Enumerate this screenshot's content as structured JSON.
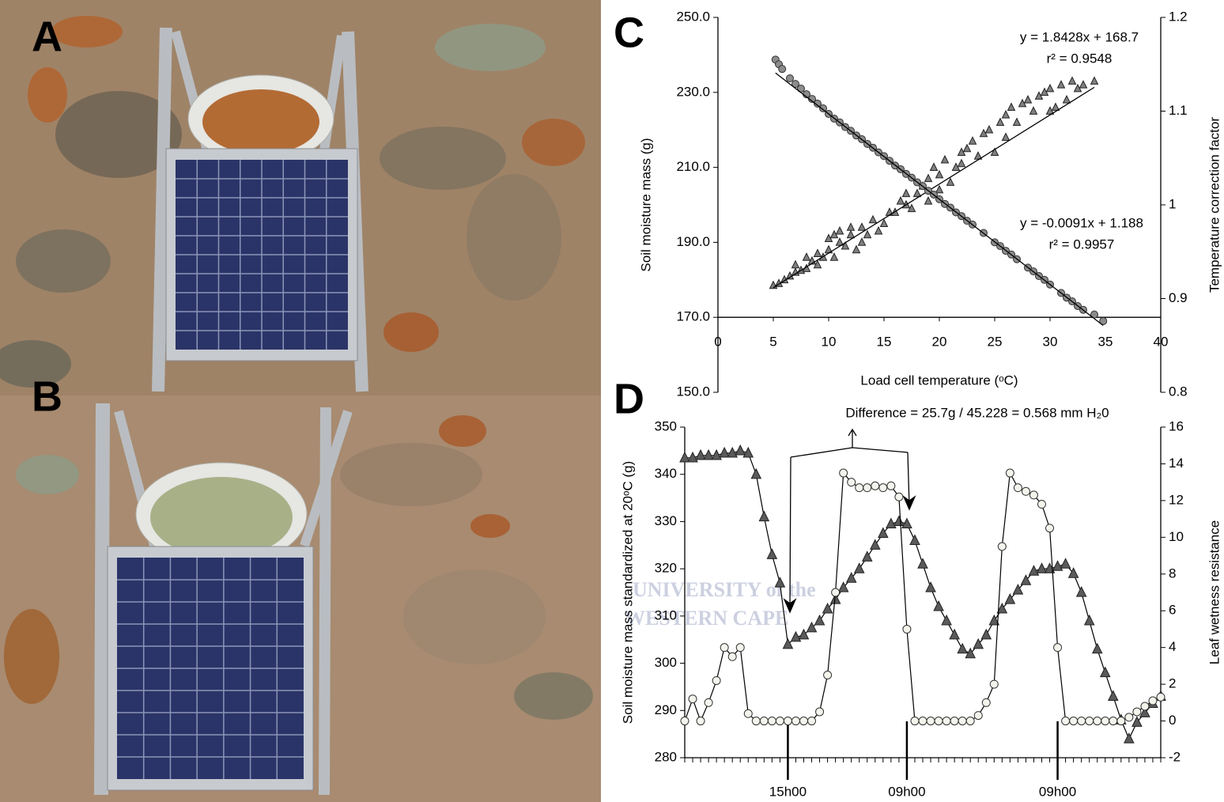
{
  "panel_labels": [
    "A",
    "B",
    "C",
    "D"
  ],
  "watermark": [
    "UNIVERSITY of the",
    "WESTERN CAPE"
  ],
  "chart_data": [
    {
      "type": "scatter",
      "x_label": "Load cell temperature (ᵒC)",
      "y_label": "Soil moisture mass (g)",
      "y2_label": "Temperature correction factor",
      "xlim": [
        0,
        40
      ],
      "xticks": [
        0,
        5,
        10,
        15,
        20,
        25,
        30,
        35,
        40
      ],
      "ylim": [
        150,
        250
      ],
      "yticks": [
        {
          "value": 150,
          "label": "150.0"
        },
        {
          "value": 170,
          "label": "170.0"
        },
        {
          "value": 190,
          "label": "190.0"
        },
        {
          "value": 210,
          "label": "210.0"
        },
        {
          "value": 230,
          "label": "230.0"
        },
        {
          "value": 250,
          "label": "250.0"
        }
      ],
      "y2lim": [
        0.8,
        1.2
      ],
      "y2ticks": [
        0.8,
        0.9,
        1,
        1.1,
        1.2
      ],
      "x_axis_crosses_y": 170,
      "series": [
        {
          "marker": "triangle",
          "color": "#808080",
          "axis": "y",
          "x": [
            5,
            5.5,
            6,
            6.5,
            7,
            7,
            7.5,
            8,
            8,
            8.5,
            9,
            9,
            9.5,
            10,
            10,
            10.5,
            10.5,
            11,
            11,
            11.5,
            12,
            12,
            12.5,
            13,
            13,
            13.5,
            14,
            14.5,
            15,
            15.5,
            16,
            16.5,
            17,
            17,
            17.5,
            18,
            18.5,
            19,
            19,
            19.5,
            20,
            20,
            20.5,
            21,
            21.5,
            22,
            22,
            22.5,
            23,
            23.5,
            24,
            24.5,
            25,
            25.5,
            26,
            26,
            26.5,
            27,
            27.5,
            28,
            28.5,
            29,
            29.5,
            30,
            30,
            30.5,
            31,
            31.5,
            32,
            32.5,
            33,
            34
          ],
          "values": [
            178.5,
            179,
            180,
            181,
            182,
            184,
            182.5,
            183,
            186,
            185,
            184,
            187,
            186,
            188,
            191,
            186,
            192,
            190,
            193,
            189,
            192,
            194,
            188,
            190,
            194,
            192,
            196,
            193,
            195,
            198,
            198,
            201,
            200,
            203,
            199,
            203,
            205,
            201,
            207,
            210,
            204,
            208,
            212,
            206,
            210,
            211,
            214,
            215,
            217,
            213,
            219,
            220,
            214,
            222,
            224,
            218,
            226,
            222,
            227,
            228,
            225,
            229,
            230,
            231,
            225,
            226,
            232,
            228,
            233,
            231,
            232,
            233
          ],
          "trendline": {
            "slope": 1.8428,
            "intercept": 168.7,
            "equation": "y = 1.8428x + 168.7",
            "r2": "r² = 0.9548"
          }
        },
        {
          "marker": "circle",
          "color": "#8c8c8c",
          "axis": "y2",
          "x": [
            5.2,
            5.5,
            5.8,
            6.5,
            7,
            7.5,
            8,
            8.5,
            9,
            9.5,
            10,
            10.5,
            11,
            11.5,
            12,
            12.5,
            13,
            13.5,
            14,
            14.5,
            15,
            15.5,
            16,
            16.5,
            17,
            17.5,
            18,
            18.5,
            19,
            19.5,
            20,
            20.5,
            21,
            21.5,
            22,
            22.5,
            23,
            24,
            25,
            25.5,
            26,
            26.5,
            27,
            28,
            28.5,
            29,
            29.5,
            30,
            31,
            31.5,
            32,
            32.5,
            33,
            34,
            34.8
          ],
          "values": [
            1.155,
            1.15,
            1.145,
            1.135,
            1.129,
            1.124,
            1.118,
            1.113,
            1.108,
            1.103,
            1.097,
            1.092,
            1.088,
            1.083,
            1.079,
            1.074,
            1.07,
            1.065,
            1.061,
            1.056,
            1.052,
            1.047,
            1.042,
            1.038,
            1.033,
            1.029,
            1.024,
            1.02,
            1.015,
            1.011,
            1.006,
            1.001,
            0.997,
            0.992,
            0.988,
            0.983,
            0.979,
            0.97,
            0.96,
            0.956,
            0.951,
            0.947,
            0.942,
            0.933,
            0.929,
            0.924,
            0.92,
            0.915,
            0.906,
            0.901,
            0.897,
            0.892,
            0.888,
            0.883,
            0.876
          ],
          "trendline": {
            "slope": -0.0091,
            "intercept": 1.188,
            "equation": "y = -0.0091x + 1.188",
            "r2": "r² = 0.9957"
          }
        }
      ]
    },
    {
      "type": "line",
      "y_label": "Soil moisture mass standardized at 20ᵒC (g)",
      "y2_label": "Leaf wetness resistance",
      "annotation": "Difference  = 25.7g / 45.228 = 0.568 mm H₂0",
      "categories": [
        null,
        null,
        null,
        null,
        null,
        null,
        null,
        null,
        null,
        null,
        null,
        null,
        null,
        "15h00",
        null,
        null,
        null,
        null,
        null,
        null,
        null,
        null,
        null,
        null,
        null,
        null,
        null,
        null,
        "09h00",
        null,
        null,
        null,
        null,
        null,
        null,
        null,
        null,
        null,
        null,
        null,
        null,
        null,
        null,
        null,
        null,
        null,
        null,
        "09h00",
        null,
        null,
        null,
        null,
        null,
        null,
        null,
        null,
        null,
        null,
        null,
        null,
        null
      ],
      "ylim": [
        280,
        350
      ],
      "yticks": [
        280,
        290,
        300,
        310,
        320,
        330,
        340,
        350
      ],
      "y2lim": [
        -2,
        16
      ],
      "y2ticks": [
        -2,
        0,
        2,
        4,
        6,
        8,
        10,
        12,
        14,
        16
      ],
      "series": [
        {
          "marker": "triangle",
          "color": "#5a5a5a",
          "axis": "y",
          "values": [
            343.5,
            343.5,
            344,
            344,
            344,
            344.5,
            344.5,
            345,
            344.5,
            340,
            331,
            323,
            317,
            304,
            305.5,
            306,
            307.5,
            309,
            311.5,
            313.5,
            316,
            318,
            320,
            322.5,
            325,
            327.5,
            329.5,
            330,
            329.5,
            326,
            321,
            316,
            312,
            309,
            306,
            303,
            302,
            304,
            306,
            309,
            311.5,
            313.5,
            315.5,
            317.5,
            319.5,
            320,
            320,
            320.5,
            321,
            319,
            315,
            309,
            303,
            298,
            293,
            288,
            284,
            287.5,
            289.5,
            291.5,
            293
          ]
        },
        {
          "marker": "circle",
          "color": "#f4f4ec",
          "axis": "y2",
          "values": [
            0,
            1.2,
            0,
            1,
            2.2,
            4,
            3.5,
            4,
            0.4,
            0,
            0,
            0,
            0,
            0,
            0,
            0,
            0,
            0.5,
            2.5,
            7,
            13.5,
            13,
            12.7,
            12.7,
            12.8,
            12.7,
            12.8,
            12.2,
            5,
            0,
            0,
            0,
            0,
            0,
            0,
            0,
            0,
            0.3,
            1,
            2,
            9.5,
            13.5,
            12.7,
            12.5,
            12.3,
            11.8,
            10.5,
            4,
            0,
            0,
            0,
            0,
            0,
            0,
            0,
            0,
            0.2,
            0.5,
            0.8,
            1.1,
            1.3
          ]
        }
      ]
    }
  ]
}
